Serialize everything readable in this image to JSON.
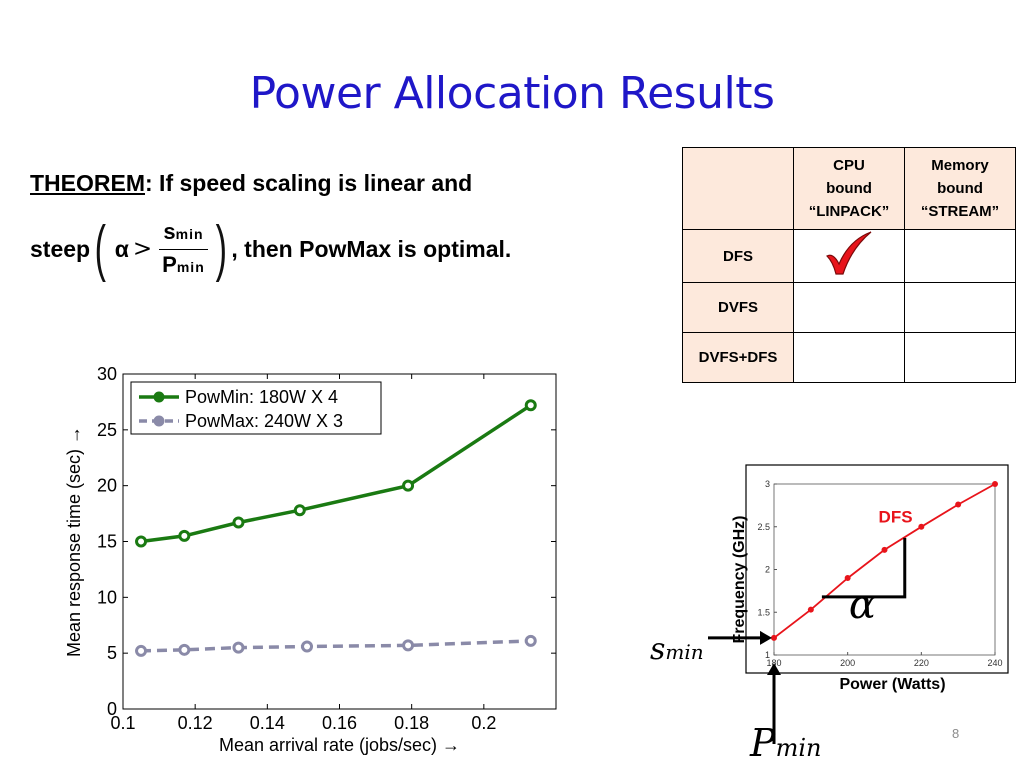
{
  "slide": {
    "title": "Power Allocation Results",
    "page_number": "8"
  },
  "theorem": {
    "label": "THEOREM",
    "line1_rest": ": If speed scaling is linear and",
    "steep": "steep",
    "alpha": "α",
    "gt": ">",
    "num_main": "s",
    "num_sub": "min",
    "den_main": "P",
    "den_sub": "min",
    "line2_rest": ", then PowMax is optimal."
  },
  "table": {
    "header": [
      "",
      [
        "CPU",
        "bound",
        "“LINPACK”"
      ],
      [
        "Memory",
        "bound",
        "“STREAM”"
      ]
    ],
    "rows": [
      {
        "label": "DFS",
        "cpu_check": true,
        "mem_check": false
      },
      {
        "label": "DVFS",
        "cpu_check": false,
        "mem_check": false
      },
      {
        "label": "DVFS+DFS",
        "cpu_check": false,
        "mem_check": false
      }
    ],
    "check_color": "#e8141b"
  },
  "chart_data": [
    {
      "type": "line",
      "xlabel": "Mean arrival rate (jobs/sec) →",
      "ylabel": "Mean response time (sec) →",
      "xlim": [
        0.1,
        0.22
      ],
      "ylim": [
        0,
        30
      ],
      "xticks": [
        "0.1",
        "0.12",
        "0.14",
        "0.16",
        "0.18",
        "0.2"
      ],
      "yticks": [
        "0",
        "5",
        "10",
        "15",
        "20",
        "25",
        "30"
      ],
      "legend_position": "top-left",
      "grid": false,
      "series": [
        {
          "name": "PowMin: 180W X 4",
          "color": "#1a7a12",
          "style": "solid",
          "x": [
            0.105,
            0.117,
            0.132,
            0.149,
            0.179,
            0.213
          ],
          "y": [
            15.0,
            15.5,
            16.7,
            17.8,
            20.0,
            27.2
          ]
        },
        {
          "name": "PowMax: 240W X 3",
          "color": "#8a8aa8",
          "style": "dashed",
          "x": [
            0.105,
            0.117,
            0.132,
            0.151,
            0.179,
            0.213
          ],
          "y": [
            5.2,
            5.3,
            5.5,
            5.6,
            5.7,
            6.1
          ]
        }
      ]
    },
    {
      "type": "line",
      "xlabel": "Power (Watts)",
      "ylabel": "Frequency (GHz)",
      "xlim": [
        180,
        240
      ],
      "ylim": [
        1,
        3
      ],
      "xticks": [
        "180",
        "200",
        "220",
        "240"
      ],
      "yticks": [
        "1",
        "1.5",
        "2",
        "2.5",
        "3"
      ],
      "grid": false,
      "series": [
        {
          "label": "DFS",
          "color": "#e8141b",
          "x": [
            180,
            190,
            200,
            210,
            220,
            230,
            240
          ],
          "y": [
            1.2,
            1.53,
            1.9,
            2.23,
            2.5,
            2.76,
            3.0
          ]
        }
      ],
      "annotations": {
        "slope_symbol": "α",
        "s_label_main": "s",
        "s_label_sub": "min",
        "p_label_main": "P",
        "p_label_sub": "min"
      }
    }
  ]
}
